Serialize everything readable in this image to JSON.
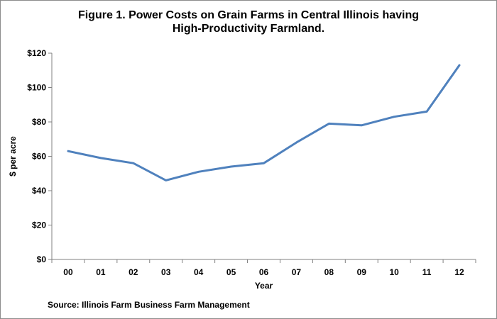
{
  "chart_data": {
    "type": "line",
    "title_lines": [
      "Figure 1. Power Costs on Grain Farms in Central Illinois  having",
      "High-Productivity Farmland."
    ],
    "xlabel": "Year",
    "ylabel": "$ per acre",
    "categories": [
      "00",
      "01",
      "02",
      "03",
      "04",
      "05",
      "06",
      "07",
      "08",
      "09",
      "10",
      "11",
      "12"
    ],
    "series": [
      {
        "values": [
          63,
          59,
          56,
          46,
          51,
          54,
          56,
          68,
          79,
          78,
          83,
          86,
          113
        ],
        "color": "#4f81bd"
      }
    ],
    "ylim": [
      0,
      120
    ],
    "yticks": [
      0,
      20,
      40,
      60,
      80,
      100,
      120
    ],
    "ytick_labels": [
      "$0",
      "$20",
      "$40",
      "$60",
      "$80",
      "$100",
      "$120"
    ],
    "grid": false,
    "legend": "none",
    "source": "Source:  Illinois Farm Business Farm Management"
  }
}
